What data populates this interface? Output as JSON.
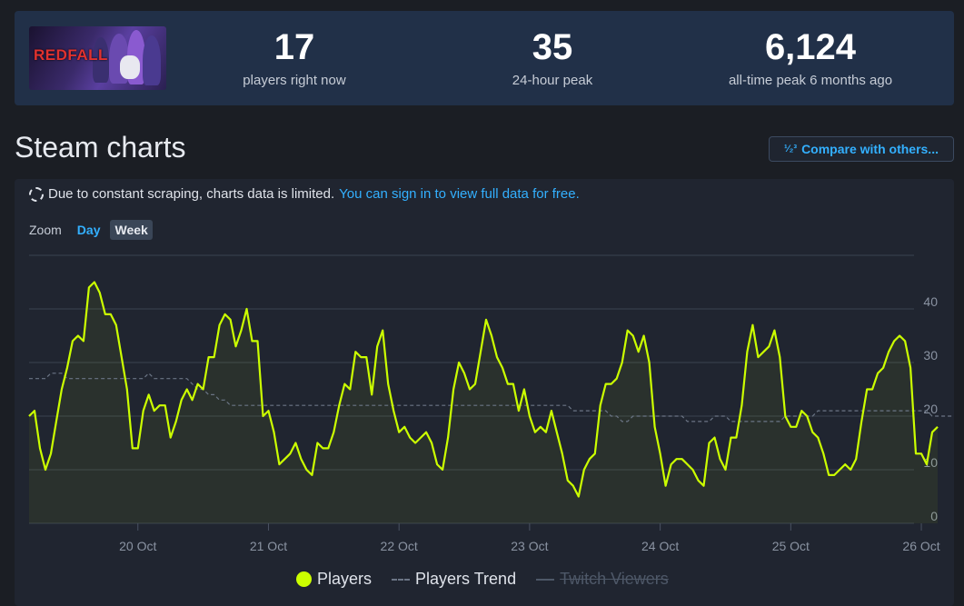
{
  "header": {
    "game_logo_text": "REDFALL",
    "stats": [
      {
        "value": "17",
        "label": "players right now"
      },
      {
        "value": "35",
        "label": "24-hour peak"
      },
      {
        "value": "6,124",
        "label": "all-time peak 6 months ago"
      }
    ]
  },
  "section": {
    "title": "Steam charts",
    "compare_label": "Compare with others..."
  },
  "notice": {
    "text": "Due to constant scraping, charts data is limited.",
    "link": "You can sign in to view full data for free."
  },
  "zoom": {
    "label": "Zoom",
    "options": [
      "Day",
      "Week"
    ],
    "selected": "Week"
  },
  "legend": [
    {
      "name": "Players",
      "enabled": true
    },
    {
      "name": "Players Trend",
      "enabled": true
    },
    {
      "name": "Twitch Viewers",
      "enabled": false
    }
  ],
  "colors": {
    "players": "#ccff00",
    "trend": "#6b7585",
    "accent": "#33b0ff"
  },
  "chart_data": {
    "type": "line",
    "x_tick_labels": [
      "20 Oct",
      "21 Oct",
      "22 Oct",
      "23 Oct",
      "24 Oct",
      "25 Oct",
      "26 Oct"
    ],
    "ylim": [
      0,
      50
    ],
    "y_ticks": [
      0,
      10,
      20,
      30,
      40
    ],
    "grid": true,
    "legend_position": "bottom",
    "series": [
      {
        "name": "Players",
        "x_start": "19 Oct 04:00",
        "step_hours": 1,
        "values": [
          20,
          21,
          14,
          10,
          13,
          19,
          25,
          29,
          34,
          35,
          34,
          44,
          45,
          43,
          39,
          39,
          37,
          31,
          25,
          14,
          14,
          21,
          24,
          21,
          22,
          22,
          16,
          19,
          23,
          25,
          23,
          26,
          25,
          31,
          31,
          37,
          39,
          38,
          33,
          36,
          40,
          34,
          34,
          20,
          21,
          17,
          11,
          12,
          13,
          15,
          12,
          10,
          9,
          15,
          14,
          14,
          17,
          22,
          26,
          25,
          32,
          31,
          31,
          24,
          33,
          36,
          26,
          21,
          17,
          18,
          16,
          15,
          16,
          17,
          15,
          11,
          10,
          16,
          25,
          30,
          28,
          25,
          26,
          32,
          38,
          35,
          31,
          29,
          26,
          26,
          21,
          25,
          20,
          17,
          18,
          17,
          21,
          17,
          13,
          8,
          7,
          5,
          10,
          12,
          13,
          22,
          26,
          26,
          27,
          30,
          36,
          35,
          32,
          35,
          30,
          18,
          13,
          7,
          11,
          12,
          12,
          11,
          10,
          8,
          7,
          15,
          16,
          12,
          10,
          16,
          16,
          22,
          32,
          37,
          31,
          32,
          33,
          36,
          31,
          20,
          18,
          18,
          21,
          20,
          17,
          16,
          13,
          9,
          9,
          10,
          11,
          10,
          12,
          19,
          25,
          25,
          28,
          29,
          32,
          34,
          35,
          34,
          29,
          13,
          13,
          11,
          17,
          18
        ]
      },
      {
        "name": "Players Trend",
        "values": [
          27,
          27,
          27,
          27,
          28,
          28,
          28,
          27,
          27,
          27,
          27,
          27,
          27,
          27,
          27,
          27,
          27,
          27,
          27,
          27,
          27,
          27,
          28,
          27,
          27,
          27,
          27,
          27,
          27,
          27,
          26,
          25,
          25,
          24,
          24,
          23,
          23,
          22,
          22,
          22,
          22,
          22,
          22,
          22,
          22,
          22,
          22,
          22,
          22,
          22,
          22,
          22,
          22,
          22,
          22,
          22,
          22,
          22,
          22,
          22,
          22,
          22,
          22,
          22,
          22,
          22,
          22,
          22,
          22,
          22,
          22,
          22,
          22,
          22,
          22,
          22,
          22,
          22,
          22,
          22,
          22,
          22,
          22,
          22,
          22,
          22,
          22,
          22,
          22,
          22,
          22,
          22,
          22,
          22,
          22,
          22,
          22,
          22,
          22,
          22,
          21,
          21,
          21,
          21,
          21,
          21,
          21,
          20,
          20,
          19,
          19,
          20,
          20,
          20,
          20,
          20,
          20,
          20,
          20,
          20,
          20,
          19,
          19,
          19,
          19,
          19,
          20,
          20,
          20,
          19,
          19,
          19,
          19,
          19,
          19,
          19,
          19,
          19,
          19,
          20,
          20,
          20,
          20,
          20,
          20,
          21,
          21,
          21,
          21,
          21,
          21,
          21,
          21,
          21,
          21,
          21,
          21,
          21,
          21,
          21,
          21,
          21,
          21,
          21,
          21,
          21,
          20,
          20,
          20,
          20,
          20,
          20
        ]
      }
    ]
  }
}
